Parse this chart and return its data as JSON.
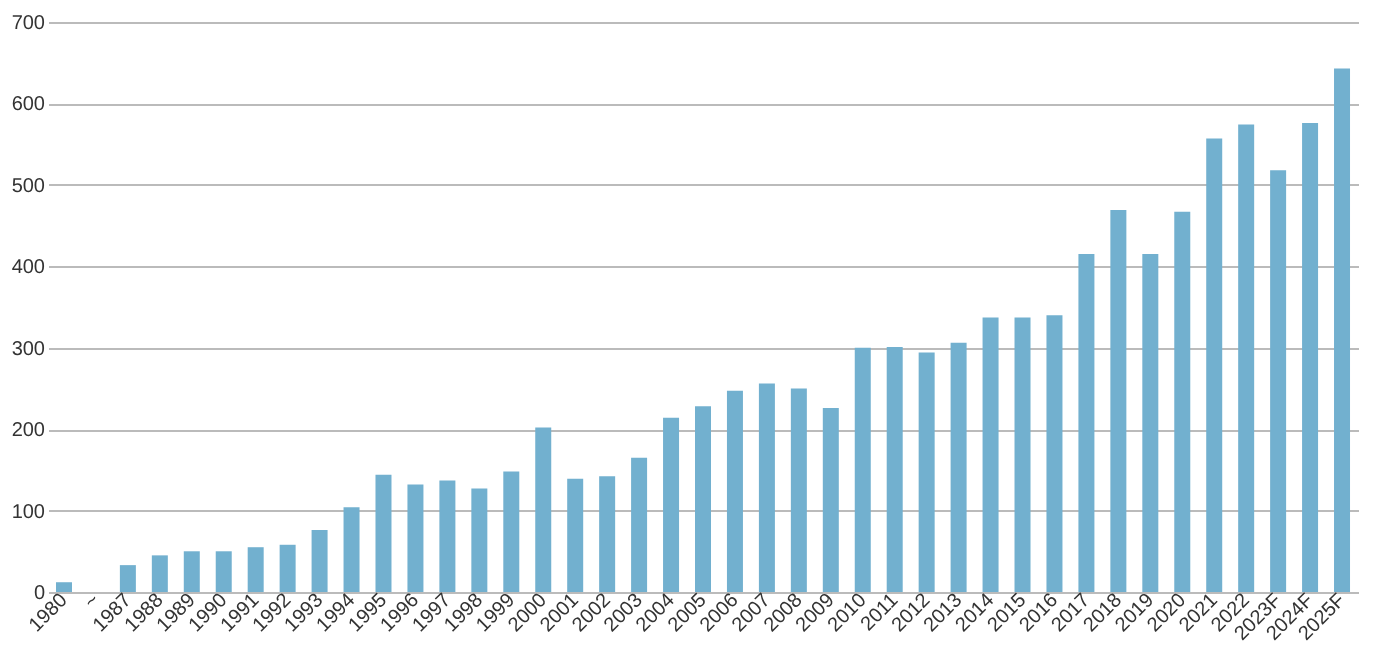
{
  "chart_data": {
    "type": "bar",
    "categories": [
      "1980",
      "~",
      "1987",
      "1988",
      "1989",
      "1990",
      "1991",
      "1992",
      "1993",
      "1994",
      "1995",
      "1996",
      "1997",
      "1998",
      "1999",
      "2000",
      "2001",
      "2002",
      "2003",
      "2004",
      "2005",
      "2006",
      "2007",
      "2008",
      "2009",
      "2010",
      "2011",
      "2012",
      "2013",
      "2014",
      "2015",
      "2016",
      "2017",
      "2018",
      "2019",
      "2020",
      "2021",
      "2022",
      "2023F",
      "2024F",
      "2025F"
    ],
    "values": [
      12,
      null,
      33,
      45,
      50,
      50,
      55,
      58,
      76,
      104,
      144,
      132,
      137,
      127,
      148,
      202,
      139,
      142,
      165,
      214,
      228,
      247,
      256,
      250,
      226,
      300,
      301,
      294,
      306,
      337,
      337,
      340,
      415,
      469,
      415,
      467,
      557,
      574,
      518,
      576,
      643
    ],
    "color": "#72b0cf",
    "ylim": [
      0,
      700
    ],
    "yticks": [
      0,
      100,
      200,
      300,
      400,
      500,
      600,
      700
    ],
    "grid": "y"
  }
}
